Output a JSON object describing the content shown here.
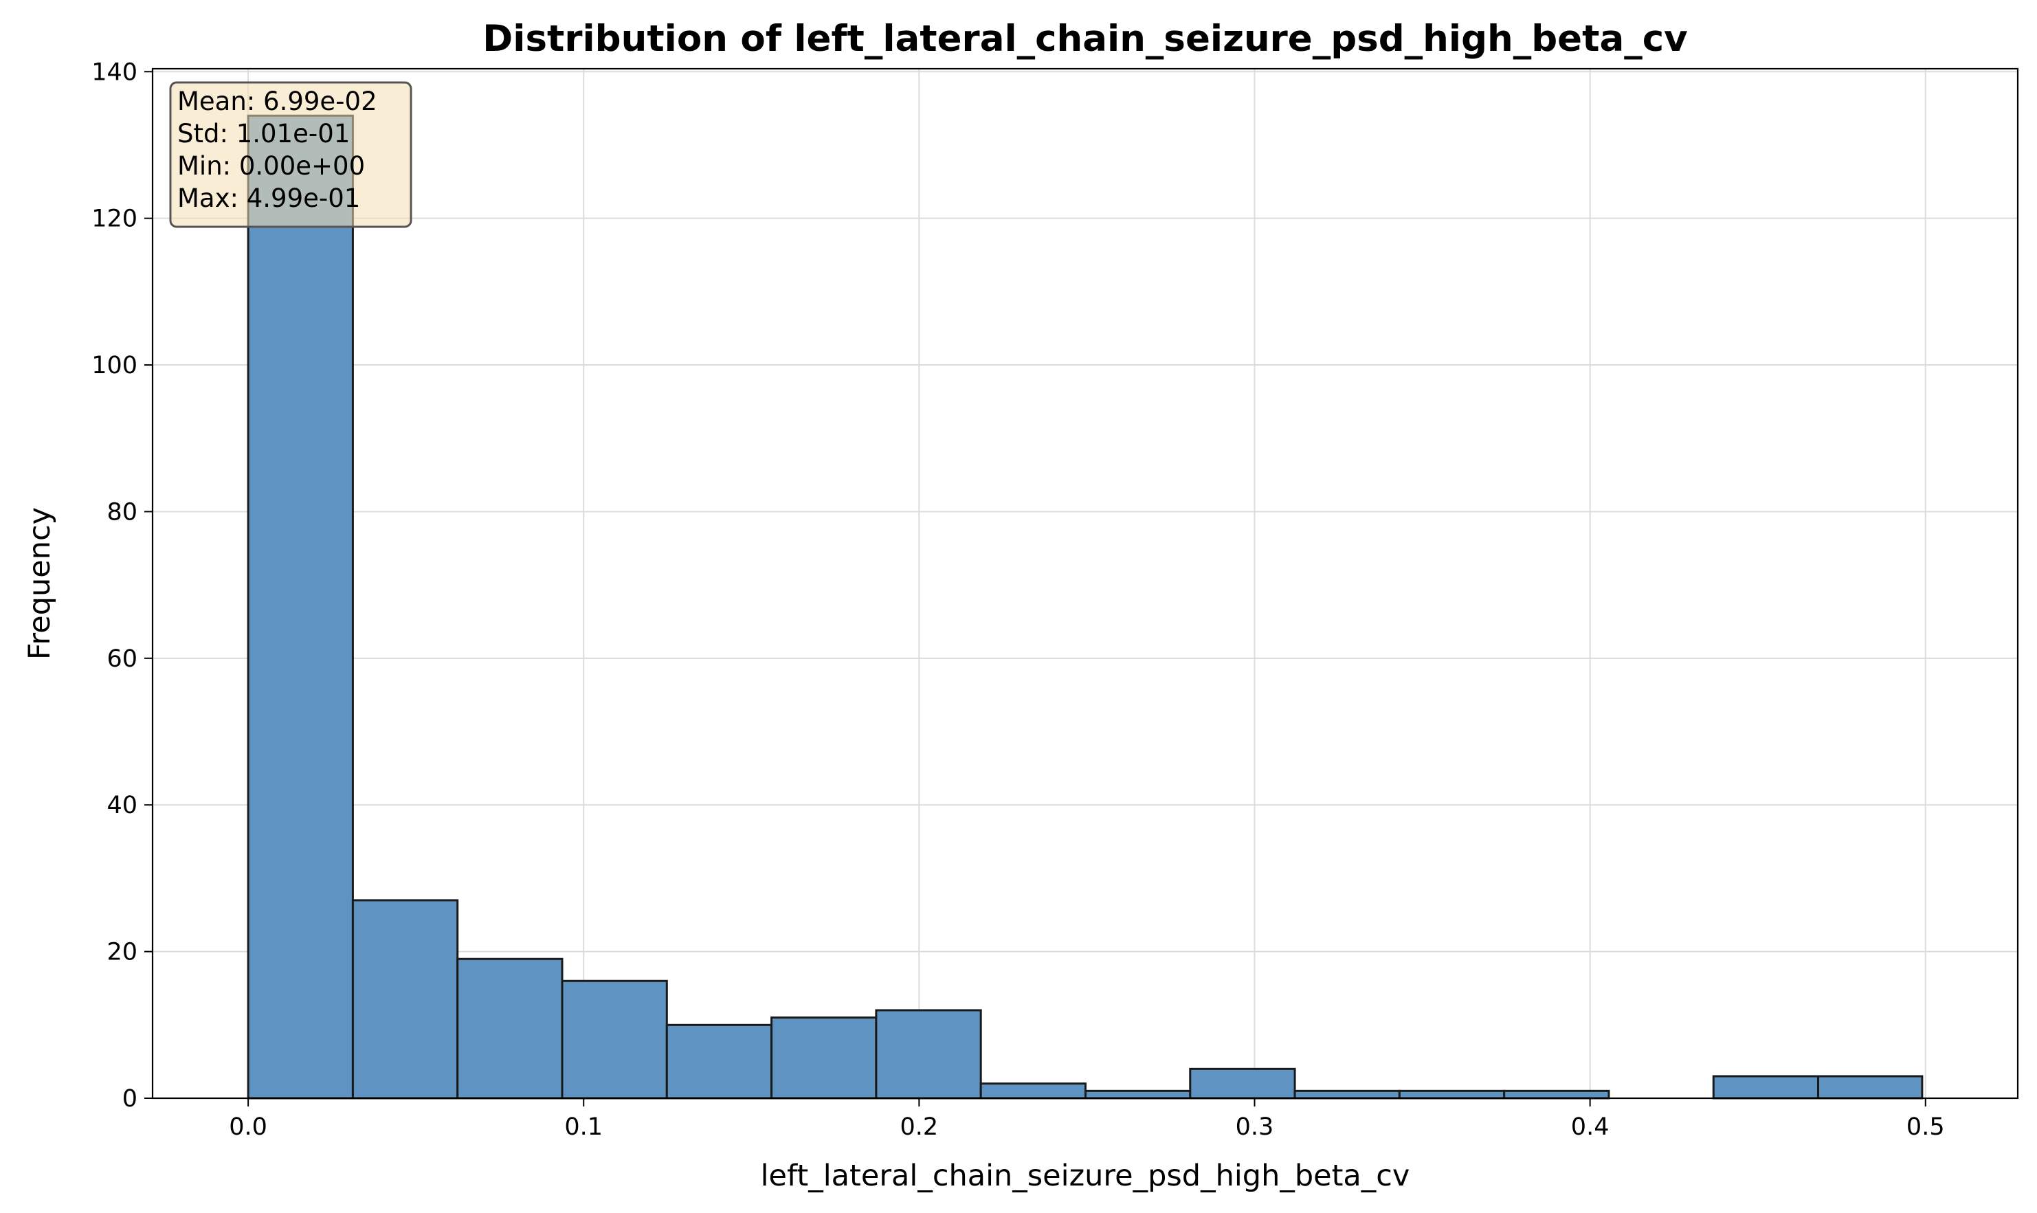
{
  "chart_data": {
    "type": "bar",
    "title": "Distribution of left_lateral_chain_seizure_psd_high_beta_cv",
    "xlabel": "left_lateral_chain_seizure_psd_high_beta_cv",
    "ylabel": "Frequency",
    "xlim": [
      -0.0285,
      0.5275
    ],
    "ylim": [
      0,
      140.4
    ],
    "xticks": [
      "0.0",
      "0.1",
      "0.2",
      "0.3",
      "0.4",
      "0.5"
    ],
    "yticks": [
      "0",
      "20",
      "40",
      "60",
      "80",
      "100",
      "120",
      "140"
    ],
    "grid": true,
    "bin_edges": [
      0.0,
      0.0312,
      0.0624,
      0.0936,
      0.1248,
      0.156,
      0.1872,
      0.2184,
      0.2496,
      0.2808,
      0.312,
      0.3432,
      0.3744,
      0.4056,
      0.4368,
      0.468,
      0.499
    ],
    "values": [
      134,
      27,
      19,
      16,
      10,
      11,
      12,
      2,
      1,
      4,
      1,
      1,
      1,
      0,
      3,
      3
    ],
    "bar_color": "#5f93c2",
    "edge_color": "#1a1a1a",
    "stats_box": {
      "placement": "top-left",
      "background": "#f5deb3",
      "lines": [
        "Mean: 6.99e-02",
        "Std: 1.01e-01",
        "Min: 0.00e+00",
        "Max: 4.99e-01"
      ]
    }
  }
}
